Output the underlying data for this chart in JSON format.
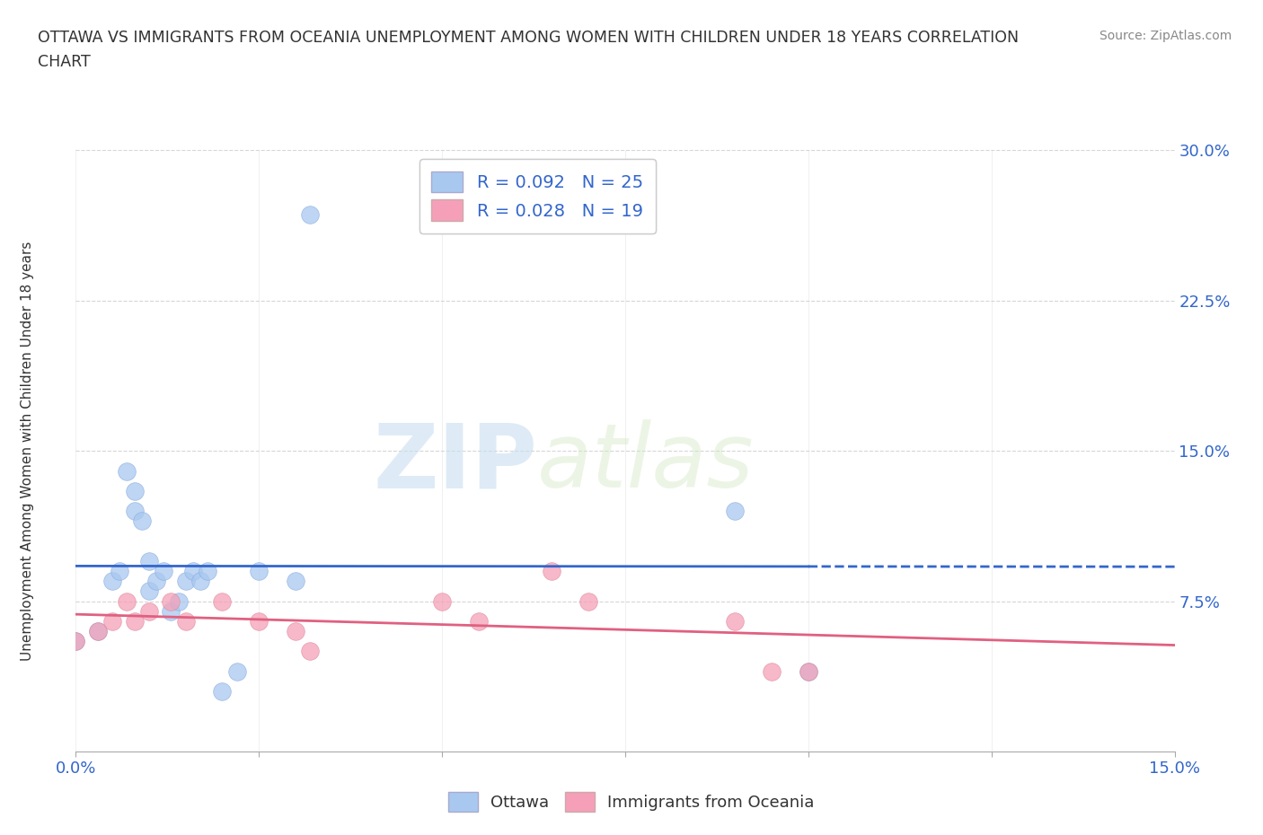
{
  "title": "OTTAWA VS IMMIGRANTS FROM OCEANIA UNEMPLOYMENT AMONG WOMEN WITH CHILDREN UNDER 18 YEARS CORRELATION\nCHART",
  "source": "Source: ZipAtlas.com",
  "ylabel_label": "Unemployment Among Women with Children Under 18 years",
  "x_min": 0.0,
  "x_max": 0.15,
  "y_min": 0.0,
  "y_max": 0.3,
  "ottawa_R": 0.092,
  "ottawa_N": 25,
  "immigrants_R": 0.028,
  "immigrants_N": 19,
  "ottawa_color": "#a8c8f0",
  "immigrants_color": "#f5a0b8",
  "ottawa_line_color": "#3366cc",
  "immigrants_line_color": "#e06080",
  "watermark_zip": "ZIP",
  "watermark_atlas": "atlas",
  "ottawa_x": [
    0.0,
    0.003,
    0.005,
    0.006,
    0.007,
    0.008,
    0.008,
    0.009,
    0.01,
    0.01,
    0.011,
    0.012,
    0.013,
    0.014,
    0.015,
    0.016,
    0.017,
    0.018,
    0.02,
    0.022,
    0.025,
    0.03,
    0.032,
    0.09,
    0.1
  ],
  "ottawa_y": [
    0.055,
    0.06,
    0.085,
    0.09,
    0.14,
    0.13,
    0.12,
    0.115,
    0.095,
    0.08,
    0.085,
    0.09,
    0.07,
    0.075,
    0.085,
    0.09,
    0.085,
    0.09,
    0.03,
    0.04,
    0.09,
    0.085,
    0.268,
    0.12,
    0.04
  ],
  "immigrants_x": [
    0.0,
    0.003,
    0.005,
    0.007,
    0.008,
    0.01,
    0.013,
    0.015,
    0.02,
    0.025,
    0.03,
    0.032,
    0.05,
    0.055,
    0.065,
    0.07,
    0.09,
    0.095,
    0.1
  ],
  "immigrants_y": [
    0.055,
    0.06,
    0.065,
    0.075,
    0.065,
    0.07,
    0.075,
    0.065,
    0.075,
    0.065,
    0.06,
    0.05,
    0.075,
    0.065,
    0.09,
    0.075,
    0.065,
    0.04,
    0.04
  ]
}
